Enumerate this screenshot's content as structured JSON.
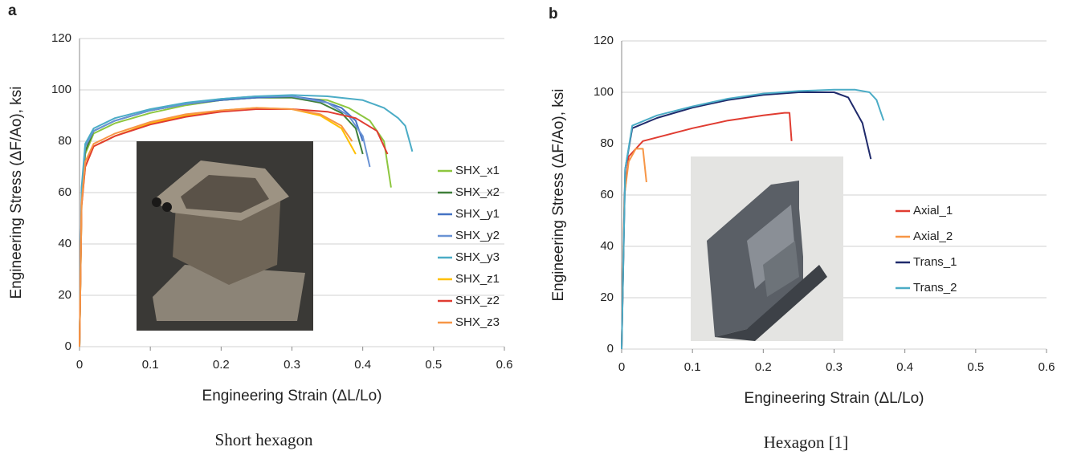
{
  "chart_data": [
    {
      "type": "line",
      "panel": "a",
      "caption": "Short hexagon",
      "xlabel": "Engineering Strain (ΔL/Lo)",
      "ylabel": "Engineering Stress (ΔF/Ao), ksi",
      "xlim": [
        0,
        0.6
      ],
      "ylim": [
        0,
        120
      ],
      "xticks": [
        0,
        0.1,
        0.2,
        0.3,
        0.4,
        0.5,
        0.6
      ],
      "yticks": [
        0,
        20,
        40,
        60,
        80,
        100,
        120
      ],
      "grid": "y",
      "legend": "right",
      "series": [
        {
          "name": "SHX_x1",
          "color": "#8dc63f",
          "x": [
            0,
            0.003,
            0.008,
            0.02,
            0.05,
            0.1,
            0.15,
            0.2,
            0.25,
            0.3,
            0.35,
            0.38,
            0.41,
            0.43,
            0.44
          ],
          "values": [
            0,
            55,
            75,
            83,
            87,
            91,
            94,
            96,
            97,
            97,
            96,
            93,
            88,
            80,
            62
          ]
        },
        {
          "name": "SHX_x2",
          "color": "#3f7f3a",
          "x": [
            0,
            0.003,
            0.008,
            0.02,
            0.05,
            0.1,
            0.15,
            0.2,
            0.25,
            0.3,
            0.34,
            0.37,
            0.39,
            0.4
          ],
          "values": [
            0,
            58,
            76,
            84,
            88,
            92,
            94.5,
            96,
            97,
            97,
            95,
            91,
            85,
            75
          ]
        },
        {
          "name": "SHX_y1",
          "color": "#4472c4",
          "x": [
            0,
            0.003,
            0.008,
            0.02,
            0.05,
            0.1,
            0.15,
            0.2,
            0.25,
            0.3,
            0.34,
            0.37,
            0.39,
            0.4
          ],
          "values": [
            0,
            60,
            78,
            84,
            88,
            92,
            94.5,
            96,
            97,
            97.5,
            96,
            93,
            88,
            80
          ]
        },
        {
          "name": "SHX_y2",
          "color": "#6a93d4",
          "x": [
            0,
            0.003,
            0.008,
            0.02,
            0.05,
            0.1,
            0.15,
            0.2,
            0.25,
            0.3,
            0.35,
            0.38,
            0.4,
            0.41
          ],
          "values": [
            0,
            60,
            78,
            84,
            88,
            92,
            94.5,
            96.5,
            97.5,
            97.5,
            95,
            90,
            82,
            70
          ]
        },
        {
          "name": "SHX_y3",
          "color": "#4bacc6",
          "x": [
            0,
            0.003,
            0.008,
            0.02,
            0.05,
            0.1,
            0.15,
            0.2,
            0.25,
            0.3,
            0.35,
            0.4,
            0.43,
            0.45,
            0.46,
            0.47
          ],
          "values": [
            0,
            62,
            79,
            85,
            89,
            92.5,
            95,
            96.5,
            97.5,
            98,
            97.5,
            96,
            93,
            89,
            86,
            76
          ]
        },
        {
          "name": "SHX_z1",
          "color": "#ffc000",
          "x": [
            0,
            0.003,
            0.008,
            0.02,
            0.05,
            0.1,
            0.15,
            0.2,
            0.25,
            0.3,
            0.34,
            0.37,
            0.39
          ],
          "values": [
            0,
            55,
            70,
            78,
            82,
            87,
            90,
            92,
            93,
            92.5,
            90,
            85,
            75
          ]
        },
        {
          "name": "SHX_z2",
          "color": "#e03c31",
          "x": [
            0,
            0.003,
            0.008,
            0.02,
            0.05,
            0.1,
            0.15,
            0.2,
            0.25,
            0.3,
            0.35,
            0.39,
            0.42,
            0.435
          ],
          "values": [
            0,
            55,
            70,
            78,
            82,
            86.5,
            89.5,
            91.5,
            92.5,
            92.5,
            91.5,
            89,
            84,
            75
          ]
        },
        {
          "name": "SHX_z3",
          "color": "#f79646",
          "x": [
            0,
            0.003,
            0.008,
            0.02,
            0.05,
            0.1,
            0.15,
            0.2,
            0.25,
            0.3,
            0.34,
            0.37,
            0.385
          ],
          "values": [
            0,
            56,
            72,
            79,
            83,
            87.5,
            90.5,
            92,
            93,
            92.5,
            90.5,
            86,
            80
          ]
        }
      ]
    },
    {
      "type": "line",
      "panel": "b",
      "caption": "Hexagon [1]",
      "xlabel": "Engineering Strain (ΔL/Lo)",
      "ylabel": "Engineering Stress (ΔF/Ao), ksi",
      "xlim": [
        0,
        0.6
      ],
      "ylim": [
        0,
        120
      ],
      "xticks": [
        0,
        0.1,
        0.2,
        0.3,
        0.4,
        0.5,
        0.6
      ],
      "yticks": [
        0,
        20,
        40,
        60,
        80,
        100,
        120
      ],
      "grid": "y",
      "legend": "right",
      "series": [
        {
          "name": "Axial_1",
          "color": "#e03c31",
          "x": [
            0,
            0.004,
            0.01,
            0.03,
            0.1,
            0.15,
            0.2,
            0.23,
            0.237,
            0.24
          ],
          "values": [
            0,
            60,
            75,
            81,
            86,
            89,
            91,
            92,
            92,
            81
          ]
        },
        {
          "name": "Axial_2",
          "color": "#f79646",
          "x": [
            0,
            0.004,
            0.01,
            0.02,
            0.03,
            0.035
          ],
          "values": [
            0,
            60,
            73,
            78,
            78,
            65
          ]
        },
        {
          "name": "Trans_1",
          "color": "#1f2a6b",
          "x": [
            0,
            0.005,
            0.015,
            0.05,
            0.1,
            0.15,
            0.2,
            0.25,
            0.3,
            0.32,
            0.34,
            0.352
          ],
          "values": [
            0,
            70,
            86,
            90,
            94,
            97,
            99,
            100,
            100,
            98,
            88,
            74
          ]
        },
        {
          "name": "Trans_2",
          "color": "#4bacc6",
          "x": [
            0,
            0.005,
            0.015,
            0.05,
            0.1,
            0.15,
            0.2,
            0.25,
            0.3,
            0.33,
            0.35,
            0.36,
            0.37
          ],
          "values": [
            0,
            70,
            87,
            91,
            94.5,
            97.5,
            99.5,
            100.5,
            101,
            101,
            100,
            97,
            89
          ]
        }
      ]
    }
  ]
}
